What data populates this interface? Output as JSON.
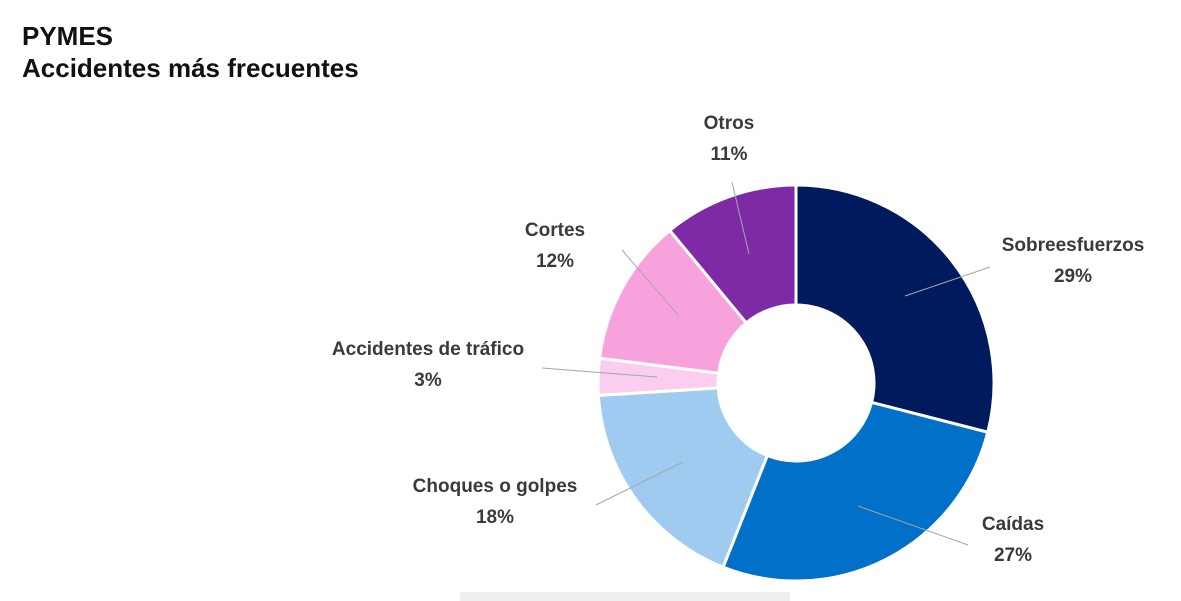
{
  "header": {
    "title": "PYMES",
    "subtitle": "Accidentes más frecuentes"
  },
  "chart_data": {
    "type": "pie",
    "style": "donut",
    "title": "PYMES",
    "subtitle": "Accidentes más frecuentes",
    "legend": "none",
    "slices": [
      {
        "label": "Sobreesfuerzos",
        "value": 29,
        "value_label": "29%",
        "color": "#001A5E"
      },
      {
        "label": "Caídas",
        "value": 27,
        "value_label": "27%",
        "color": "#0070C8"
      },
      {
        "label": "Choques o golpes",
        "value": 18,
        "value_label": "18%",
        "color": "#9ECBEF"
      },
      {
        "label": "Accidentes de tráfico",
        "value": 3,
        "value_label": "3%",
        "color": "#FBCDEE"
      },
      {
        "label": "Cortes",
        "value": 12,
        "value_label": "12%",
        "color": "#F8A2DD"
      },
      {
        "label": "Otros",
        "value": 11,
        "value_label": "11%",
        "color": "#7E2AA6"
      }
    ]
  }
}
